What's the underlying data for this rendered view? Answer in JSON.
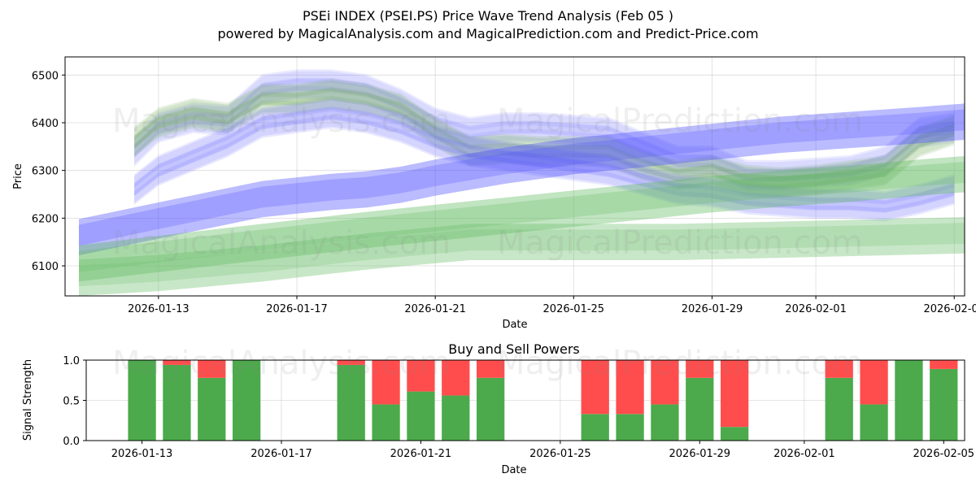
{
  "chart_data": [
    {
      "type": "area",
      "title": "PSEi INDEX (PSEI.PS) Price Wave Trend Analysis (Feb 05 )",
      "subtitle": "powered by MagicalAnalysis.com and MagicalPrediction.com and Predict-Price.com",
      "xlabel": "Date",
      "ylabel": "Price",
      "xlim": [
        -2.7,
        23.3
      ],
      "ylim": [
        6037,
        6538
      ],
      "x_epoch": "2026-01-13",
      "x_ticks": [
        {
          "x": 0,
          "label": "2026-01-13"
        },
        {
          "x": 4,
          "label": "2026-01-17"
        },
        {
          "x": 8,
          "label": "2026-01-21"
        },
        {
          "x": 12,
          "label": "2026-01-25"
        },
        {
          "x": 16,
          "label": "2026-01-29"
        },
        {
          "x": 19,
          "label": "2026-02-01"
        },
        {
          "x": 23,
          "label": "2026-02-05"
        }
      ],
      "y_ticks": [
        6100,
        6200,
        6300,
        6400,
        6500
      ],
      "grid": true,
      "watermarks": [
        "MagicalAnalysis.com",
        "MagicalPrediction.com"
      ],
      "series": [
        {
          "name": "upper-wave-center",
          "color": "#8080ff",
          "points": [
            [
              -0.7,
              6340
            ],
            [
              0,
              6390
            ],
            [
              1,
              6410
            ],
            [
              2,
              6405
            ],
            [
              3,
              6470
            ],
            [
              4,
              6480
            ],
            [
              5,
              6480
            ],
            [
              6,
              6470
            ],
            [
              7,
              6440
            ],
            [
              8,
              6400
            ],
            [
              9,
              6380
            ],
            [
              10,
              6390
            ],
            [
              11,
              6390
            ],
            [
              12,
              6385
            ],
            [
              13,
              6380
            ],
            [
              14,
              6350
            ],
            [
              15,
              6320
            ],
            [
              16,
              6320
            ],
            [
              17,
              6290
            ],
            [
              18,
              6290
            ],
            [
              19,
              6295
            ],
            [
              20,
              6300
            ],
            [
              21,
              6320
            ],
            [
              22,
              6380
            ],
            [
              23,
              6390
            ]
          ]
        },
        {
          "name": "green-wave-center",
          "color": "#6aa84f",
          "points": [
            [
              -0.7,
              6360
            ],
            [
              0,
              6400
            ],
            [
              1,
              6420
            ],
            [
              2,
              6410
            ],
            [
              3,
              6450
            ],
            [
              4,
              6450
            ],
            [
              5,
              6460
            ],
            [
              6,
              6450
            ],
            [
              7,
              6430
            ],
            [
              8,
              6380
            ],
            [
              9,
              6340
            ],
            [
              10,
              6345
            ],
            [
              11,
              6340
            ],
            [
              12,
              6340
            ],
            [
              13,
              6340
            ],
            [
              14,
              6310
            ],
            [
              15,
              6290
            ],
            [
              16,
              6300
            ],
            [
              17,
              6280
            ],
            [
              18,
              6275
            ],
            [
              19,
              6280
            ],
            [
              20,
              6290
            ],
            [
              21,
              6300
            ],
            [
              22,
              6360
            ],
            [
              23,
              6385
            ]
          ]
        },
        {
          "name": "lower-wave-center",
          "color": "#7070ff",
          "points": [
            [
              -0.7,
              6260
            ],
            [
              0,
              6300
            ],
            [
              1,
              6330
            ],
            [
              2,
              6360
            ],
            [
              3,
              6400
            ],
            [
              4,
              6410
            ],
            [
              5,
              6420
            ],
            [
              6,
              6410
            ],
            [
              7,
              6390
            ],
            [
              8,
              6360
            ],
            [
              9,
              6340
            ],
            [
              10,
              6330
            ],
            [
              11,
              6320
            ],
            [
              12,
              6310
            ],
            [
              13,
              6300
            ],
            [
              14,
              6280
            ],
            [
              15,
              6260
            ],
            [
              16,
              6255
            ],
            [
              17,
              6240
            ],
            [
              18,
              6235
            ],
            [
              19,
              6230
            ],
            [
              20,
              6230
            ],
            [
              21,
              6225
            ],
            [
              22,
              6240
            ],
            [
              23,
              6260
            ]
          ]
        },
        {
          "name": "blue-trend-band",
          "color": "#4d4dff",
          "points": [
            [
              -2.3,
              6160
            ],
            [
              0,
              6195
            ],
            [
              3,
              6240
            ],
            [
              5,
              6255
            ],
            [
              6,
              6260
            ],
            [
              7,
              6270
            ],
            [
              8,
              6285
            ],
            [
              10,
              6310
            ],
            [
              12,
              6330
            ],
            [
              14,
              6345
            ],
            [
              16,
              6360
            ],
            [
              18,
              6375
            ],
            [
              20,
              6385
            ],
            [
              22,
              6395
            ],
            [
              23.8,
              6405
            ]
          ]
        },
        {
          "name": "green-trend-band",
          "color": "#5cb85c",
          "points": [
            [
              -2.3,
              6105
            ],
            [
              0,
              6125
            ],
            [
              3,
              6150
            ],
            [
              6,
              6175
            ],
            [
              8,
              6190
            ],
            [
              10,
              6205
            ],
            [
              12,
              6220
            ],
            [
              14,
              6235
            ],
            [
              16,
              6250
            ],
            [
              18,
              6262
            ],
            [
              20,
              6272
            ],
            [
              22,
              6285
            ],
            [
              23.8,
              6295
            ]
          ]
        },
        {
          "name": "green-lower-band",
          "color": "#6fc06f",
          "points": [
            [
              -2.3,
              6075
            ],
            [
              0,
              6085
            ],
            [
              3,
              6105
            ],
            [
              6,
              6130
            ],
            [
              9,
              6150
            ],
            [
              12,
              6150
            ],
            [
              15,
              6150
            ],
            [
              18,
              6155
            ],
            [
              21,
              6160
            ],
            [
              23.8,
              6165
            ]
          ]
        }
      ]
    },
    {
      "type": "bar",
      "title": "Buy and Sell Powers",
      "xlabel": "Date",
      "ylabel": "Signal Strength",
      "xlim": [
        -1.6,
        23.6
      ],
      "ylim": [
        0,
        1
      ],
      "x_ticks": [
        {
          "x": 0,
          "label": "2026-01-13"
        },
        {
          "x": 4,
          "label": "2026-01-17"
        },
        {
          "x": 8,
          "label": "2026-01-21"
        },
        {
          "x": 12,
          "label": "2026-01-25"
        },
        {
          "x": 16,
          "label": "2026-01-29"
        },
        {
          "x": 19,
          "label": "2026-02-01"
        },
        {
          "x": 23,
          "label": "2026-02-05"
        }
      ],
      "y_ticks": [
        {
          "v": 0,
          "label": "0.0"
        },
        {
          "v": 0.5,
          "label": "0.5"
        },
        {
          "v": 1,
          "label": "1.0"
        }
      ],
      "buy_color": "#4caa4c",
      "sell_color": "#ff4d4d",
      "watermarks": [
        "MagicalAnalysis.com",
        "MagicalPrediction.com"
      ],
      "bars": [
        {
          "x": 0,
          "buy": 1.0
        },
        {
          "x": 1,
          "buy": 0.94
        },
        {
          "x": 2,
          "buy": 0.78
        },
        {
          "x": 3,
          "buy": 1.0
        },
        {
          "x": 6,
          "buy": 0.94
        },
        {
          "x": 7,
          "buy": 0.45
        },
        {
          "x": 8,
          "buy": 0.61
        },
        {
          "x": 9,
          "buy": 0.56
        },
        {
          "x": 10,
          "buy": 0.78
        },
        {
          "x": 13,
          "buy": 0.33
        },
        {
          "x": 14,
          "buy": 0.33
        },
        {
          "x": 15,
          "buy": 0.45
        },
        {
          "x": 16,
          "buy": 0.78
        },
        {
          "x": 17,
          "buy": 0.17
        },
        {
          "x": 20,
          "buy": 0.78
        },
        {
          "x": 21,
          "buy": 0.45
        },
        {
          "x": 22,
          "buy": 1.0
        },
        {
          "x": 23,
          "buy": 0.89
        }
      ]
    }
  ]
}
